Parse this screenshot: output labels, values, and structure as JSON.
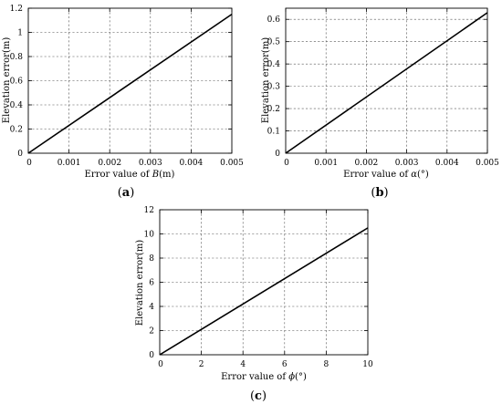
{
  "chart_data": [
    {
      "type": "line",
      "panel_label": "(a)",
      "ylabel": "Elevation error(m)",
      "xlabel_prefix": "Error value of ",
      "xlabel_var": "B",
      "xlabel_suffix": "(m)",
      "xlim": [
        0,
        0.005
      ],
      "ylim": [
        0,
        1.2
      ],
      "xticks": [
        0,
        0.001,
        0.002,
        0.003,
        0.004,
        0.005
      ],
      "xtick_labels": [
        "0",
        "0.001",
        "0.002",
        "0.003",
        "0.004",
        "0.005"
      ],
      "yticks": [
        0,
        0.2,
        0.4,
        0.6,
        0.8,
        1,
        1.2
      ],
      "ytick_labels": [
        "0",
        "0.2",
        "0.4",
        "0.6",
        "0.8",
        "1",
        "1.2"
      ],
      "grid": true,
      "series": [
        {
          "x": [
            0,
            0.005
          ],
          "y": [
            0,
            1.15
          ]
        }
      ]
    },
    {
      "type": "line",
      "panel_label": "(b)",
      "ylabel": "Elevation error(m)",
      "xlabel_prefix": "Error value of ",
      "xlabel_var": "α",
      "xlabel_suffix": "(°)",
      "xlim": [
        0,
        0.005
      ],
      "ylim": [
        0,
        0.65
      ],
      "xticks": [
        0,
        0.001,
        0.002,
        0.003,
        0.004,
        0.005
      ],
      "xtick_labels": [
        "0",
        "0.001",
        "0.002",
        "0.003",
        "0.004",
        "0.005"
      ],
      "yticks": [
        0,
        0.1,
        0.2,
        0.3,
        0.4,
        0.5,
        0.6
      ],
      "ytick_labels": [
        "0",
        "0.1",
        "0.2",
        "0.3",
        "0.4",
        "0.5",
        "0.6"
      ],
      "grid": true,
      "series": [
        {
          "x": [
            0,
            0.005
          ],
          "y": [
            0,
            0.63
          ]
        }
      ]
    },
    {
      "type": "line",
      "panel_label": "(c)",
      "ylabel": "Elevation error(m)",
      "xlabel_prefix": "Error value of ",
      "xlabel_var": "ϕ",
      "xlabel_suffix": "(°)",
      "xlim": [
        0,
        10
      ],
      "ylim": [
        0,
        12
      ],
      "xticks": [
        0,
        2,
        4,
        6,
        8,
        10
      ],
      "xtick_labels": [
        "0",
        "2",
        "4",
        "6",
        "8",
        "10"
      ],
      "yticks": [
        0,
        2,
        4,
        6,
        8,
        10,
        12
      ],
      "ytick_labels": [
        "0",
        "2",
        "4",
        "6",
        "8",
        "10",
        "12"
      ],
      "grid": true,
      "series": [
        {
          "x": [
            0,
            10
          ],
          "y": [
            0,
            10.5
          ]
        }
      ]
    }
  ]
}
